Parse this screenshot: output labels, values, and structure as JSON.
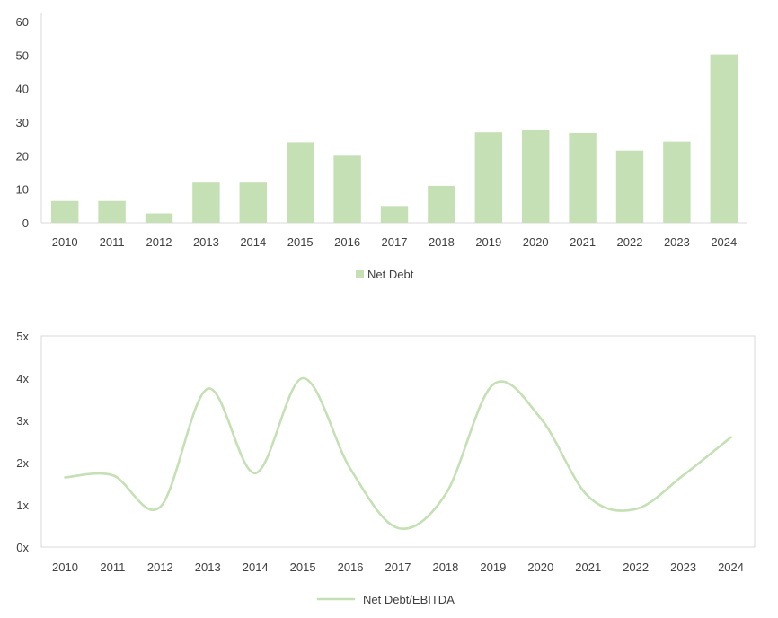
{
  "colors": {
    "bar": "#c5e0b4",
    "line": "#c5e0b4",
    "axis": "#d9d9d9",
    "text": "#404040"
  },
  "chart_data": [
    {
      "type": "bar",
      "categories": [
        "2010",
        "2011",
        "2012",
        "2013",
        "2014",
        "2015",
        "2016",
        "2017",
        "2018",
        "2019",
        "2020",
        "2021",
        "2022",
        "2023",
        "2024"
      ],
      "series": [
        {
          "name": "Net Debt",
          "values": [
            6.5,
            6.5,
            2.8,
            12.0,
            12.0,
            24.0,
            20.0,
            5.0,
            11.0,
            27.0,
            27.6,
            26.8,
            21.5,
            24.2,
            50.2
          ]
        }
      ],
      "ylim": [
        0,
        60
      ],
      "yticks": [
        "0",
        "10",
        "20",
        "30",
        "40",
        "50",
        "60"
      ],
      "grid": false,
      "legend": "bottom"
    },
    {
      "type": "line",
      "categories": [
        "2010",
        "2011",
        "2012",
        "2013",
        "2014",
        "2015",
        "2016",
        "2017",
        "2018",
        "2019",
        "2020",
        "2021",
        "2022",
        "2023",
        "2024"
      ],
      "series": [
        {
          "name": "Net Debt/EBITDA",
          "values": [
            1.65,
            1.7,
            0.95,
            3.75,
            1.75,
            4.0,
            1.85,
            0.45,
            1.25,
            3.85,
            3.05,
            1.2,
            0.9,
            1.7,
            2.6
          ]
        }
      ],
      "ylim": [
        0,
        5
      ],
      "yticks": [
        "0x",
        "1x",
        "2x",
        "3x",
        "4x",
        "5x"
      ],
      "grid": false,
      "legend": "bottom",
      "smooth": true
    }
  ]
}
